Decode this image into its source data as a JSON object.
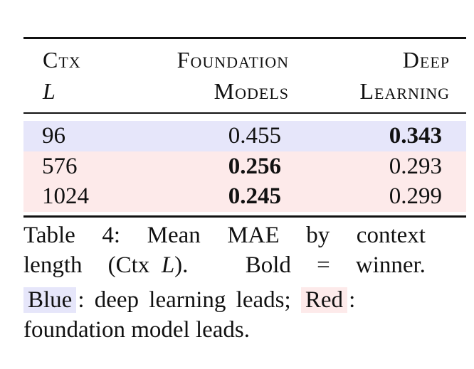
{
  "table": {
    "headers": {
      "ctx_line1": "Ctx",
      "ctx_line2": "L",
      "fm_line1": "Foundation",
      "fm_line2": "Models",
      "dl_line1": "Deep",
      "dl_line2": "Learning"
    },
    "rows": [
      {
        "ctx": "96",
        "fm": "0.455",
        "dl": "0.343",
        "winner": "dl",
        "highlight": "#e6e6fa"
      },
      {
        "ctx": "576",
        "fm": "0.256",
        "dl": "0.293",
        "winner": "fm",
        "highlight": "#fdeaea"
      },
      {
        "ctx": "1024",
        "fm": "0.245",
        "dl": "0.299",
        "winner": "fm",
        "highlight": "#fdeaea"
      }
    ]
  },
  "caption": {
    "l1_w1": "Table",
    "l1_w2": "4:",
    "l1_w3": "Mean",
    "l1_w4": "MAE",
    "l1_w5": "by",
    "l1_w6": "context",
    "l2_a": "length",
    "l2_b": "(Ctx",
    "l2_c": "L",
    "l2_d": ").",
    "l2_e": "Bold",
    "l2_f": "=",
    "l2_g": "winner.",
    "blue_label": "Blue",
    "blue_color": "#e6e6fa",
    "l3_mid": ": deep learning leads;",
    "red_label": "Red",
    "red_color": "#fdeaea",
    "l3_end": ":",
    "l4": "foundation model leads."
  }
}
